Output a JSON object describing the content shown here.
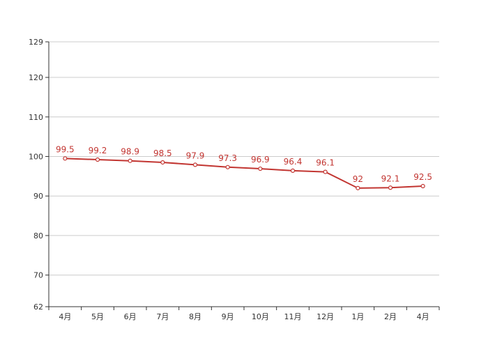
{
  "chart_data": {
    "type": "line",
    "title": "",
    "xlabel": "",
    "ylabel": "",
    "categories": [
      "4月",
      "5月",
      "6月",
      "7月",
      "8月",
      "9月",
      "10月",
      "11月",
      "12月",
      "1月",
      "2月",
      "4月"
    ],
    "series": [
      {
        "values": [
          99.5,
          99.2,
          98.9,
          98.5,
          97.9,
          97.3,
          96.9,
          96.4,
          96.1,
          92,
          92.1,
          92.5
        ],
        "color": "#c23531"
      }
    ],
    "data_labels": [
      "99.5",
      "99.2",
      "98.9",
      "98.5",
      "97.9",
      "97.3",
      "96.9",
      "96.4",
      "96.1",
      "92",
      "92.1",
      "92.5"
    ],
    "ylim": [
      62,
      129
    ],
    "yticks": [
      62,
      70,
      80,
      90,
      100,
      110,
      120,
      129
    ],
    "ytick_labels": [
      "62",
      "70",
      "80",
      "90",
      "100",
      "110",
      "120",
      "129"
    ],
    "grid": true,
    "legend": "none"
  }
}
